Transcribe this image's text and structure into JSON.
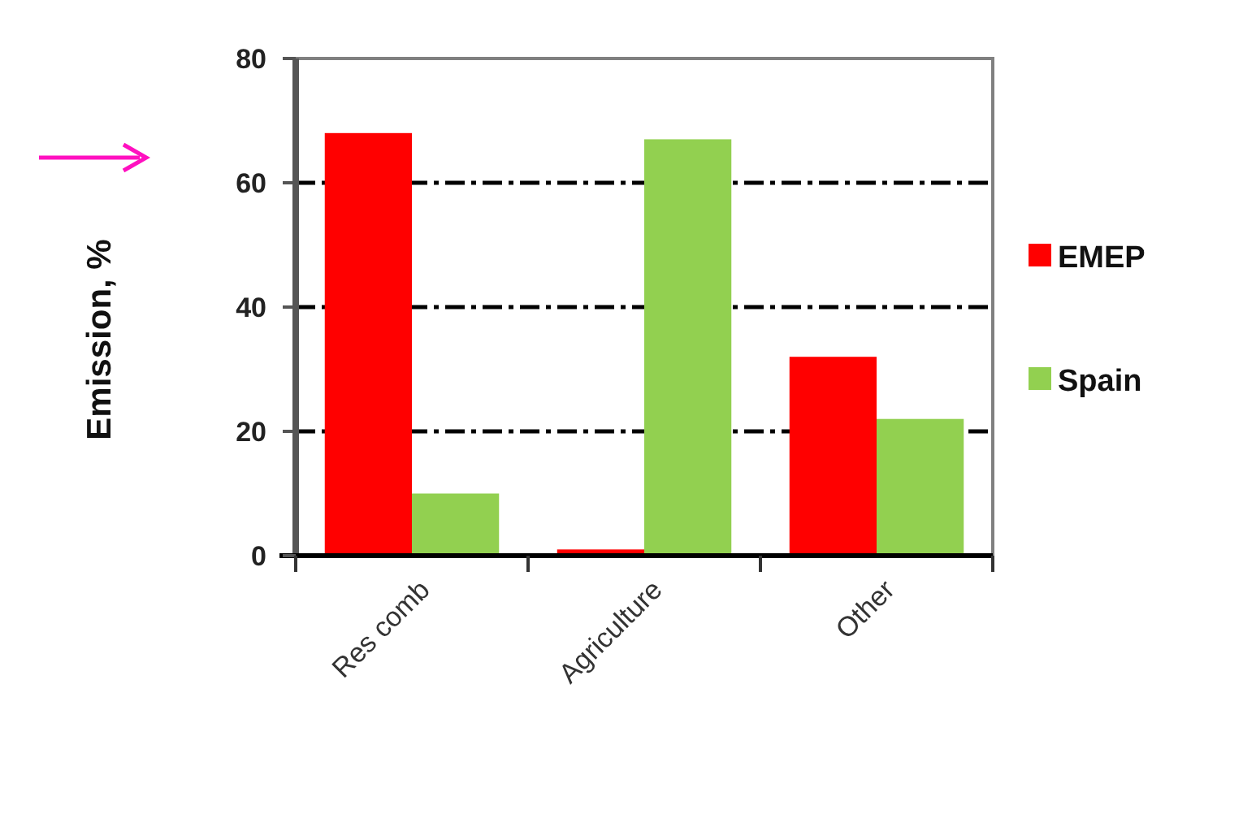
{
  "chart_data": {
    "type": "bar",
    "ylabel": "Emission, %",
    "categories": [
      "Res comb",
      "Agriculture",
      "Other"
    ],
    "series": [
      {
        "name": "EMEP",
        "color": "#ff0000",
        "values": [
          68,
          1,
          32
        ]
      },
      {
        "name": "Spain",
        "color": "#92d050",
        "values": [
          10,
          67,
          22
        ]
      }
    ],
    "ylim": [
      0,
      80
    ],
    "yticks": [
      0,
      20,
      40,
      60,
      80
    ],
    "grid": "y",
    "legend": "right"
  }
}
